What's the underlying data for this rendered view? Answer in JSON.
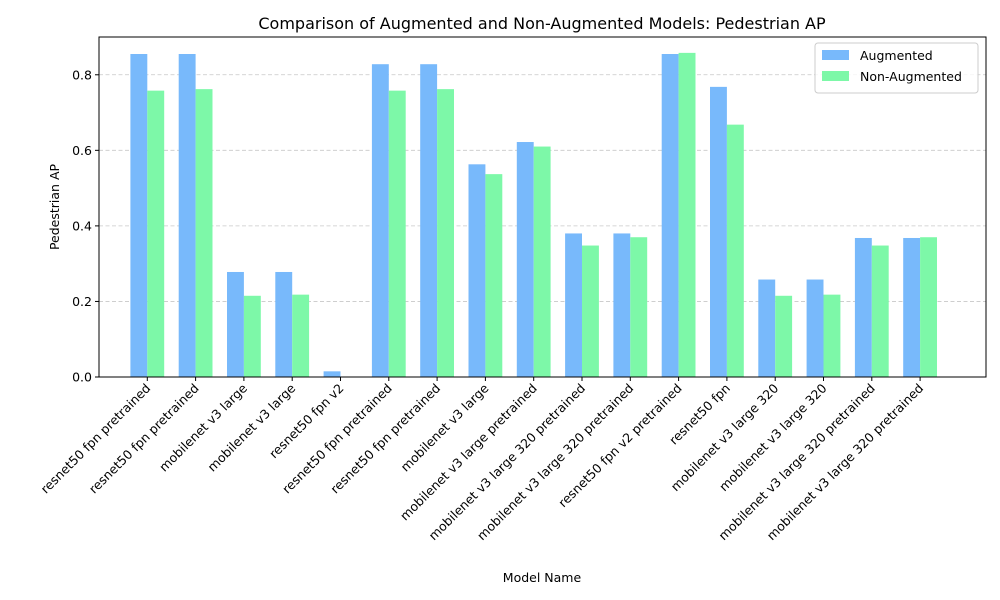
{
  "chart_data": {
    "type": "bar",
    "title": "Comparison of Augmented and Non-Augmented Models: Pedestrian AP",
    "xlabel": "Model Name",
    "ylabel": "Pedestrian AP",
    "ylim": [
      0,
      0.9
    ],
    "yticks": [
      0.0,
      0.2,
      0.4,
      0.6,
      0.8
    ],
    "ytick_labels": [
      "0.0",
      "0.2",
      "0.4",
      "0.6",
      "0.8"
    ],
    "grid": "y-dashed",
    "legend_position": "top-right",
    "categories": [
      "resnet50 fpn pretrained",
      "resnet50 fpn pretrained",
      "mobilenet v3 large",
      "mobilenet v3 large",
      "resnet50 fpn v2",
      "resnet50 fpn pretrained",
      "resnet50 fpn pretrained",
      "mobilenet v3 large",
      "mobilenet v3 large pretrained",
      "mobilenet v3 large 320 pretrained",
      "mobilenet v3 large 320 pretrained",
      "resnet50 fpn v2 pretrained",
      "resnet50 fpn",
      "mobilenet v3 large 320",
      "mobilenet v3 large 320",
      "mobilenet v3 large 320 pretrained",
      "mobilenet v3 large 320 pretrained"
    ],
    "series": [
      {
        "name": "Augmented",
        "color": "#78b9fb",
        "values": [
          0.855,
          0.855,
          0.278,
          0.278,
          0.015,
          0.828,
          0.828,
          0.563,
          0.622,
          0.38,
          0.38,
          0.855,
          0.768,
          0.258,
          0.258,
          0.368,
          0.368
        ]
      },
      {
        "name": "Non-Augmented",
        "color": "#7df8a8",
        "values": [
          0.758,
          0.762,
          0.215,
          0.218,
          0.0,
          0.758,
          0.762,
          0.537,
          0.61,
          0.348,
          0.37,
          0.858,
          0.668,
          0.215,
          0.218,
          0.348,
          0.37
        ]
      }
    ]
  }
}
